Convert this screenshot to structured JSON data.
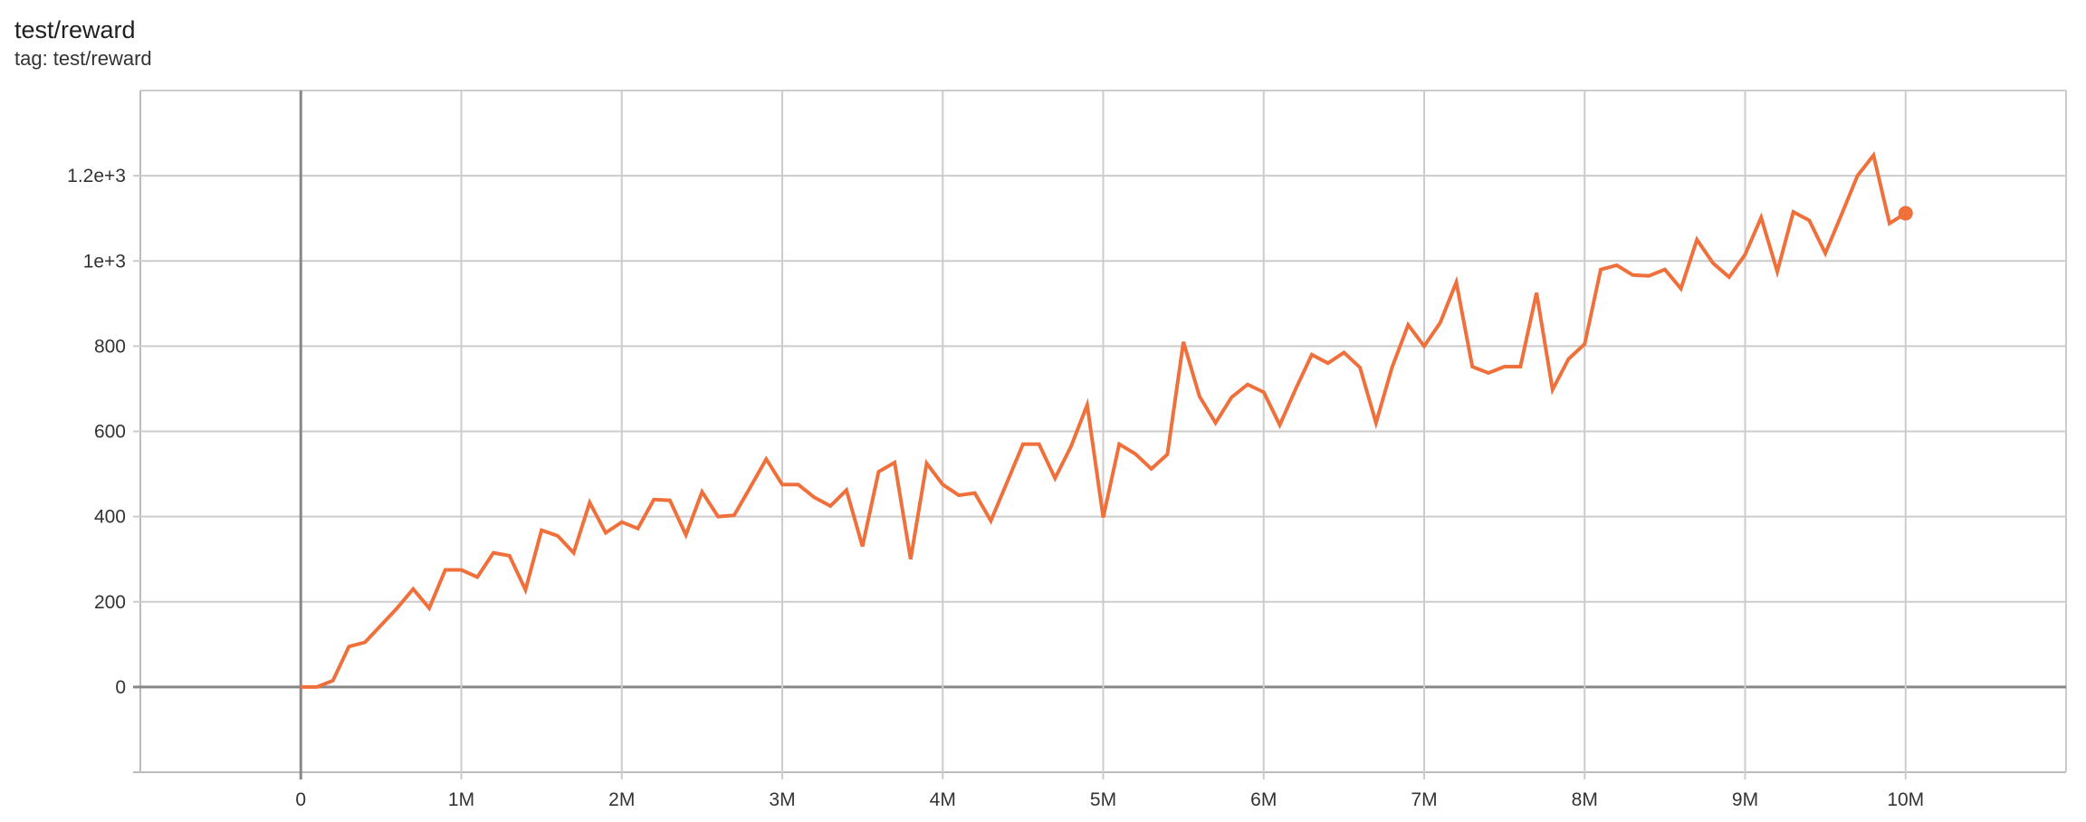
{
  "header": {
    "title": "test/reward",
    "subtitle": "tag: test/reward"
  },
  "chart_data": {
    "type": "line",
    "title": "test/reward",
    "xlim": [
      -1000000,
      11000000
    ],
    "ylim": [
      -200,
      1400
    ],
    "grid": true,
    "x_ticks": [
      0,
      1000000,
      2000000,
      3000000,
      4000000,
      5000000,
      6000000,
      7000000,
      8000000,
      9000000,
      10000000
    ],
    "x_tick_labels": [
      "0",
      "1M",
      "2M",
      "3M",
      "4M",
      "5M",
      "6M",
      "7M",
      "8M",
      "9M",
      "10M"
    ],
    "y_ticks": [
      0,
      200,
      400,
      600,
      800,
      1000,
      1200
    ],
    "y_tick_labels": [
      "0",
      "200",
      "400",
      "600",
      "800",
      "1e+3",
      "1.2e+3"
    ],
    "color": "#f0703c",
    "x_step": 100000,
    "series": [
      {
        "values": [
          0,
          0,
          15,
          95,
          105,
          145,
          185,
          230,
          185,
          275,
          275,
          258,
          315,
          308,
          228,
          368,
          355,
          315,
          433,
          362,
          387,
          372,
          440,
          438,
          357,
          458,
          400,
          403,
          468,
          535,
          475,
          475,
          445,
          425,
          462,
          330,
          505,
          527,
          300,
          525,
          475,
          450,
          455,
          390,
          480,
          570,
          570,
          490,
          565,
          662,
          398,
          570,
          547,
          512,
          546,
          810,
          682,
          620,
          680,
          710,
          692,
          615,
          700,
          780,
          760,
          785,
          750,
          620,
          750,
          850,
          800,
          855,
          950,
          752,
          737,
          752,
          752,
          925,
          698,
          770,
          805,
          980,
          990,
          967,
          965,
          980,
          935,
          1050,
          995,
          962,
          1015,
          1102,
          975,
          1115,
          1095,
          1018,
          1108,
          1200,
          1248,
          1088,
          1112
        ]
      }
    ]
  }
}
